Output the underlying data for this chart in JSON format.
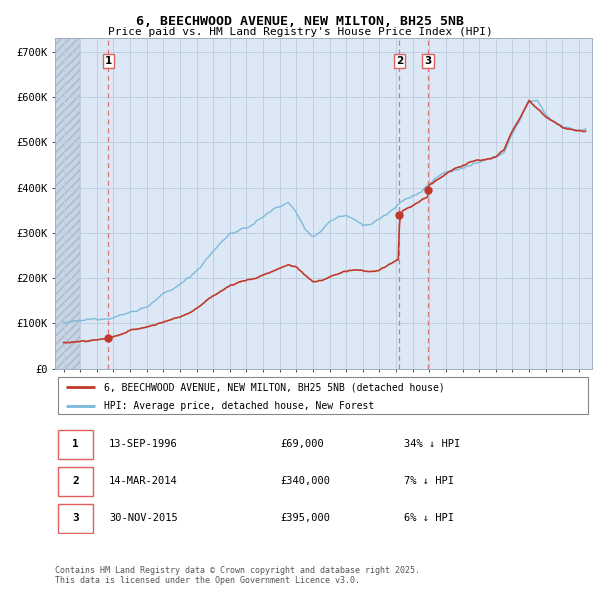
{
  "title": "6, BEECHWOOD AVENUE, NEW MILTON, BH25 5NB",
  "subtitle": "Price paid vs. HM Land Registry's House Price Index (HPI)",
  "transaction_notes": [
    {
      "label": "1",
      "date_str": "13-SEP-1996",
      "price_str": "£69,000",
      "note": "34% ↓ HPI"
    },
    {
      "label": "2",
      "date_str": "14-MAR-2014",
      "price_str": "£340,000",
      "note": "7% ↓ HPI"
    },
    {
      "label": "3",
      "date_str": "30-NOV-2015",
      "price_str": "£395,000",
      "note": "6% ↓ HPI"
    }
  ],
  "legend_property": "6, BEECHWOOD AVENUE, NEW MILTON, BH25 5NB (detached house)",
  "legend_hpi": "HPI: Average price, detached house, New Forest",
  "footer": "Contains HM Land Registry data © Crown copyright and database right 2025.\nThis data is licensed under the Open Government Licence v3.0.",
  "ylim": [
    0,
    730000
  ],
  "yticks": [
    0,
    100000,
    200000,
    300000,
    400000,
    500000,
    600000,
    700000
  ],
  "ytick_labels": [
    "£0",
    "£100K",
    "£200K",
    "£300K",
    "£400K",
    "£500K",
    "£600K",
    "£700K"
  ],
  "hpi_color": "#7ab8d9",
  "property_color": "#c0392b",
  "vline_color": "#e06060",
  "grid_color": "#c0cfe0",
  "bg_color": "#dce8f5",
  "hatch_color": "#c8d4e4"
}
